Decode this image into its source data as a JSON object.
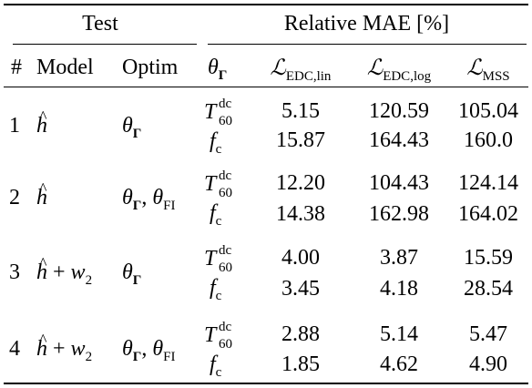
{
  "headers": {
    "test": "Test",
    "relative_mae": "Relative MAE [%]",
    "index": "#",
    "model": "Model",
    "optim": "Optim",
    "theta": "θ",
    "theta_sub": "Γ",
    "loss_symbol": "ℒ",
    "loss_lin_sub": "EDC,lin",
    "loss_log_sub": "EDC,log",
    "loss_mss_sub": "MSS"
  },
  "symbols": {
    "h": "h",
    "plus": "+",
    "w": "w",
    "w_sub": "2",
    "theta": "θ",
    "gamma": "Γ",
    "fi": "FI",
    "comma": ",",
    "T": "T",
    "T_sup": "dc",
    "T_sub": "60",
    "f": "f",
    "f_sub": "c"
  },
  "rows": [
    {
      "index": "1",
      "t60": [
        "5.15",
        "120.59",
        "105.04"
      ],
      "fc": [
        "15.87",
        "164.43",
        "160.0"
      ]
    },
    {
      "index": "2",
      "t60": [
        "12.20",
        "104.43",
        "124.14"
      ],
      "fc": [
        "14.38",
        "162.98",
        "164.02"
      ]
    },
    {
      "index": "3",
      "t60": [
        "4.00",
        "3.87",
        "15.59"
      ],
      "fc": [
        "3.45",
        "4.18",
        "28.54"
      ]
    },
    {
      "index": "4",
      "t60": [
        "2.88",
        "5.14",
        "5.47"
      ],
      "fc": [
        "1.85",
        "4.62",
        "4.90"
      ]
    }
  ]
}
